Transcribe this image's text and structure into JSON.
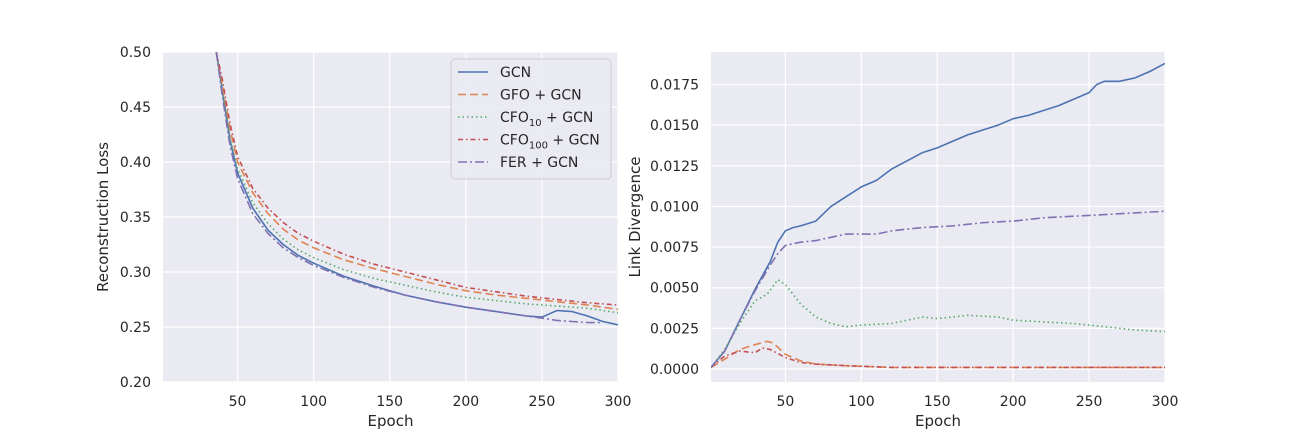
{
  "chart_data": [
    {
      "type": "line",
      "xlabel": "Epoch",
      "ylabel": "Reconstruction Loss",
      "xlim": [
        1,
        300
      ],
      "ylim": [
        0.2,
        0.5
      ],
      "xticks": [
        "50",
        "100",
        "150",
        "200",
        "250",
        "300"
      ],
      "yticks": [
        "0.20",
        "0.25",
        "0.30",
        "0.35",
        "0.40",
        "0.45",
        "0.50"
      ],
      "grid": true,
      "legend": "top-right",
      "series": [
        {
          "name": "GCN",
          "color": "#4c72b0",
          "dash": "solid",
          "x": [
            36,
            40,
            45,
            50,
            60,
            70,
            80,
            90,
            100,
            120,
            140,
            160,
            180,
            200,
            220,
            240,
            250,
            255,
            260,
            270,
            280,
            290,
            300
          ],
          "y": [
            0.5,
            0.465,
            0.42,
            0.39,
            0.358,
            0.338,
            0.325,
            0.315,
            0.308,
            0.296,
            0.287,
            0.279,
            0.273,
            0.268,
            0.264,
            0.26,
            0.259,
            0.262,
            0.265,
            0.264,
            0.26,
            0.255,
            0.252
          ]
        },
        {
          "name": "GFO + GCN",
          "color": "#dd8452",
          "dash": "8,4",
          "x": [
            36,
            40,
            45,
            50,
            60,
            70,
            80,
            90,
            100,
            120,
            140,
            160,
            180,
            200,
            220,
            240,
            260,
            280,
            300
          ],
          "y": [
            0.5,
            0.47,
            0.43,
            0.4,
            0.372,
            0.353,
            0.339,
            0.329,
            0.322,
            0.311,
            0.303,
            0.296,
            0.289,
            0.283,
            0.279,
            0.276,
            0.273,
            0.27,
            0.266
          ]
        },
        {
          "name": "CFO",
          "name_sub": "10",
          "name_suffix": " + GCN",
          "color": "#55a868",
          "dash": "1.5,3",
          "x": [
            36,
            40,
            45,
            50,
            60,
            70,
            80,
            90,
            100,
            120,
            140,
            160,
            180,
            200,
            220,
            240,
            260,
            280,
            300
          ],
          "y": [
            0.5,
            0.465,
            0.422,
            0.394,
            0.363,
            0.344,
            0.33,
            0.32,
            0.313,
            0.302,
            0.294,
            0.288,
            0.282,
            0.277,
            0.274,
            0.271,
            0.269,
            0.267,
            0.263
          ]
        },
        {
          "name": "CFO",
          "name_sub": "100",
          "name_suffix": " + GCN",
          "color": "#c44e52",
          "dash": "5,3,1.5,3",
          "x": [
            36,
            40,
            45,
            50,
            60,
            70,
            80,
            90,
            100,
            120,
            140,
            160,
            180,
            200,
            220,
            240,
            260,
            280,
            300
          ],
          "y": [
            0.5,
            0.475,
            0.435,
            0.405,
            0.376,
            0.358,
            0.345,
            0.335,
            0.328,
            0.316,
            0.307,
            0.3,
            0.293,
            0.286,
            0.282,
            0.278,
            0.275,
            0.272,
            0.27
          ]
        },
        {
          "name": "FER + GCN",
          "color": "#8172b3",
          "dash": "9,3,2,3",
          "x": [
            36,
            40,
            45,
            50,
            60,
            70,
            80,
            90,
            100,
            120,
            140,
            160,
            180,
            200,
            220,
            240,
            260,
            270,
            280,
            290
          ],
          "y": [
            0.5,
            0.46,
            0.415,
            0.385,
            0.353,
            0.335,
            0.322,
            0.313,
            0.306,
            0.295,
            0.286,
            0.279,
            0.273,
            0.268,
            0.264,
            0.26,
            0.256,
            0.255,
            0.254,
            0.254
          ]
        }
      ]
    },
    {
      "type": "line",
      "xlabel": "Epoch",
      "ylabel": "Link Divergence",
      "xlim": [
        1,
        300
      ],
      "ylim": [
        -0.0008,
        0.0195
      ],
      "xticks": [
        "50",
        "100",
        "150",
        "200",
        "250",
        "300"
      ],
      "yticks": [
        "0.0000",
        "0.0025",
        "0.0050",
        "0.0075",
        "0.0100",
        "0.0125",
        "0.0150",
        "0.0175"
      ],
      "grid": true,
      "series": [
        {
          "name": "GCN",
          "color": "#4c72b0",
          "dash": "solid",
          "x": [
            1,
            10,
            20,
            30,
            40,
            45,
            50,
            55,
            60,
            70,
            80,
            90,
            100,
            110,
            120,
            130,
            140,
            150,
            160,
            170,
            180,
            190,
            200,
            210,
            220,
            230,
            240,
            250,
            255,
            260,
            270,
            280,
            290,
            300
          ],
          "y": [
            0.0001,
            0.0011,
            0.003,
            0.0049,
            0.0066,
            0.0078,
            0.0085,
            0.0087,
            0.0088,
            0.0091,
            0.01,
            0.0106,
            0.0112,
            0.0116,
            0.0123,
            0.0128,
            0.0133,
            0.0136,
            0.014,
            0.0144,
            0.0147,
            0.015,
            0.0154,
            0.0156,
            0.0159,
            0.0162,
            0.0166,
            0.017,
            0.0175,
            0.0177,
            0.0177,
            0.0179,
            0.0183,
            0.0188
          ]
        },
        {
          "name": "GFO + GCN",
          "color": "#dd8452",
          "dash": "8,4",
          "x": [
            1,
            10,
            20,
            30,
            38,
            42,
            50,
            60,
            70,
            90,
            120,
            150,
            200,
            250,
            300
          ],
          "y": [
            0.0001,
            0.0006,
            0.0012,
            0.0015,
            0.0017,
            0.0016,
            0.0009,
            0.0005,
            0.0003,
            0.0002,
            0.0001,
            0.0001,
            0.0001,
            0.0001,
            0.0001
          ]
        },
        {
          "name": "CFO",
          "name_sub": "10",
          "name_suffix": " + GCN",
          "color": "#55a868",
          "dash": "1.5,3",
          "x": [
            1,
            10,
            20,
            30,
            38,
            45,
            50,
            55,
            60,
            70,
            80,
            90,
            100,
            120,
            140,
            150,
            170,
            190,
            200,
            220,
            240,
            260,
            280,
            300
          ],
          "y": [
            0.0001,
            0.0012,
            0.0028,
            0.0042,
            0.0046,
            0.0055,
            0.0052,
            0.0046,
            0.004,
            0.0032,
            0.0028,
            0.0026,
            0.0027,
            0.0028,
            0.0032,
            0.0031,
            0.0033,
            0.0032,
            0.003,
            0.0029,
            0.0028,
            0.0026,
            0.0024,
            0.0023
          ]
        },
        {
          "name": "CFO",
          "name_sub": "100",
          "name_suffix": " + GCN",
          "color": "#c44e52",
          "dash": "5,3,1.5,3",
          "x": [
            1,
            10,
            20,
            30,
            35,
            40,
            50,
            60,
            70,
            90,
            120,
            150,
            200,
            250,
            300
          ],
          "y": [
            0.0001,
            0.0008,
            0.0011,
            0.001,
            0.0013,
            0.0012,
            0.0007,
            0.0004,
            0.0003,
            0.0002,
            0.0001,
            0.0001,
            0.0001,
            0.0001,
            0.0001
          ]
        },
        {
          "name": "FER + GCN",
          "color": "#8172b3",
          "dash": "9,3,2,3",
          "x": [
            1,
            10,
            20,
            30,
            40,
            45,
            50,
            60,
            70,
            80,
            90,
            100,
            110,
            120,
            140,
            160,
            180,
            200,
            220,
            240,
            260,
            280,
            300
          ],
          "y": [
            0.0001,
            0.0011,
            0.003,
            0.0048,
            0.0064,
            0.0071,
            0.0076,
            0.0078,
            0.0079,
            0.0081,
            0.0083,
            0.0083,
            0.0083,
            0.0085,
            0.0087,
            0.0088,
            0.009,
            0.0091,
            0.0093,
            0.0094,
            0.0095,
            0.0096,
            0.0097
          ]
        }
      ]
    }
  ]
}
